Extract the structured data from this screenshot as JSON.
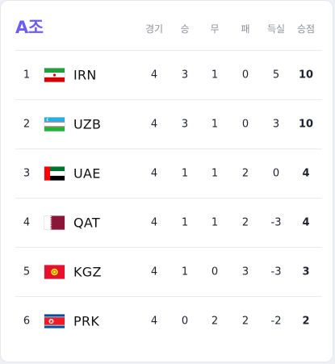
{
  "group": {
    "title": "A조"
  },
  "columns": [
    "경기",
    "승",
    "무",
    "패",
    "득실",
    "승점"
  ],
  "accent_color": "#6d5cf5",
  "standings": [
    {
      "rank": "1",
      "team": "IRN",
      "flag": "iran-flag",
      "played": "4",
      "won": "3",
      "drawn": "1",
      "lost": "0",
      "gd": "5",
      "points": "10"
    },
    {
      "rank": "2",
      "team": "UZB",
      "flag": "uzbekistan-flag",
      "played": "4",
      "won": "3",
      "drawn": "1",
      "lost": "0",
      "gd": "3",
      "points": "10"
    },
    {
      "rank": "3",
      "team": "UAE",
      "flag": "uae-flag",
      "played": "4",
      "won": "1",
      "drawn": "1",
      "lost": "2",
      "gd": "0",
      "points": "4"
    },
    {
      "rank": "4",
      "team": "QAT",
      "flag": "qatar-flag",
      "played": "4",
      "won": "1",
      "drawn": "1",
      "lost": "2",
      "gd": "-3",
      "points": "4"
    },
    {
      "rank": "5",
      "team": "KGZ",
      "flag": "kyrgyzstan-flag",
      "played": "4",
      "won": "1",
      "drawn": "0",
      "lost": "3",
      "gd": "-3",
      "points": "3"
    },
    {
      "rank": "6",
      "team": "PRK",
      "flag": "north-korea-flag",
      "played": "4",
      "won": "0",
      "drawn": "2",
      "lost": "2",
      "gd": "-2",
      "points": "2"
    }
  ]
}
